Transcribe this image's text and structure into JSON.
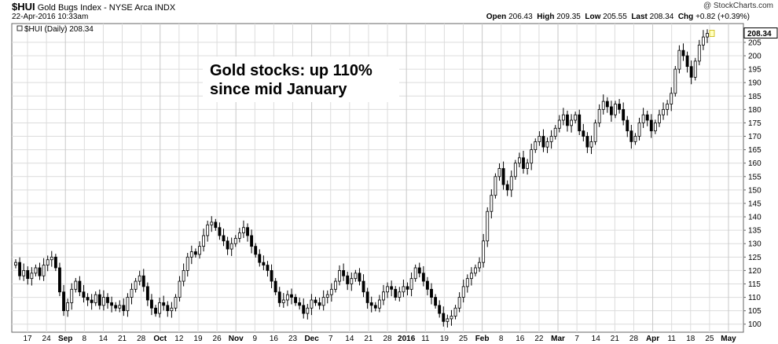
{
  "header": {
    "symbol": "$HUI",
    "name": "Gold Bugs Index - NYSE Arca INDX",
    "date": "22-Apr-2016 10:33am",
    "brand": "@ StockCharts.com",
    "open_label": "Open",
    "open": "206.43",
    "high_label": "High",
    "high": "209.35",
    "low_label": "Low",
    "low": "205.55",
    "last_label": "Last",
    "last": "208.34",
    "chg_label": "Chg",
    "chg": "+0.82 (+0.39%)"
  },
  "legend": "$HUI (Daily) 208.34",
  "annotation": [
    "Gold stocks: up 110%",
    "since mid January"
  ],
  "last_price_label": "208.34",
  "colors": {
    "up": "#ffffff",
    "down": "#000000",
    "grid": "#dcdcdc",
    "last_box": "#ffffc0"
  },
  "chart_data": {
    "type": "candlestick",
    "ylim": [
      97,
      212
    ],
    "y_ticks": [
      100,
      105,
      110,
      115,
      120,
      125,
      130,
      135,
      140,
      145,
      150,
      155,
      160,
      165,
      170,
      175,
      180,
      185,
      190,
      195,
      200,
      205
    ],
    "x_ticks": [
      "17",
      "24",
      "Sep",
      "8",
      "14",
      "21",
      "28",
      "Oct",
      "12",
      "19",
      "26",
      "Nov",
      "9",
      "16",
      "23",
      "Dec",
      "7",
      "14",
      "21",
      "28",
      "2016",
      "11",
      "19",
      "25",
      "Feb",
      "8",
      "16",
      "22",
      "Mar",
      "7",
      "14",
      "21",
      "28",
      "Apr",
      "11",
      "18",
      "25",
      "May"
    ],
    "x_tick_bold": [
      "Sep",
      "Oct",
      "Nov",
      "Dec",
      "2016",
      "Feb",
      "Mar",
      "Apr",
      "May"
    ],
    "closes": [
      123,
      118,
      120,
      117,
      119,
      121,
      118,
      122,
      124,
      125,
      121,
      112,
      105,
      108,
      113,
      116,
      112,
      110,
      109,
      108,
      111,
      107,
      110,
      108,
      107,
      106,
      107,
      105,
      110,
      113,
      116,
      118,
      114,
      109,
      106,
      104,
      108,
      107,
      105,
      106,
      110,
      116,
      120,
      125,
      127,
      126,
      129,
      133,
      137,
      138,
      136,
      133,
      131,
      128,
      130,
      132,
      134,
      136,
      133,
      129,
      126,
      123,
      122,
      120,
      116,
      112,
      108,
      109,
      111,
      110,
      108,
      107,
      104,
      106,
      109,
      108,
      107,
      110,
      111,
      113,
      116,
      120,
      118,
      115,
      117,
      119,
      116,
      112,
      108,
      107,
      106,
      109,
      112,
      114,
      113,
      110,
      112,
      114,
      113,
      117,
      121,
      119,
      116,
      113,
      110,
      107,
      104,
      101,
      102,
      103,
      106,
      110,
      114,
      117,
      119,
      121,
      123,
      131,
      142,
      148,
      155,
      158,
      152,
      150,
      155,
      160,
      162,
      158,
      160,
      165,
      168,
      170,
      166,
      168,
      170,
      173,
      176,
      178,
      174,
      176,
      178,
      172,
      170,
      166,
      168,
      175,
      180,
      183,
      181,
      178,
      182,
      180,
      176,
      172,
      168,
      170,
      175,
      178,
      176,
      172,
      175,
      178,
      180,
      182,
      186,
      195,
      202,
      200,
      196,
      192,
      198,
      204,
      207,
      208.34
    ]
  }
}
